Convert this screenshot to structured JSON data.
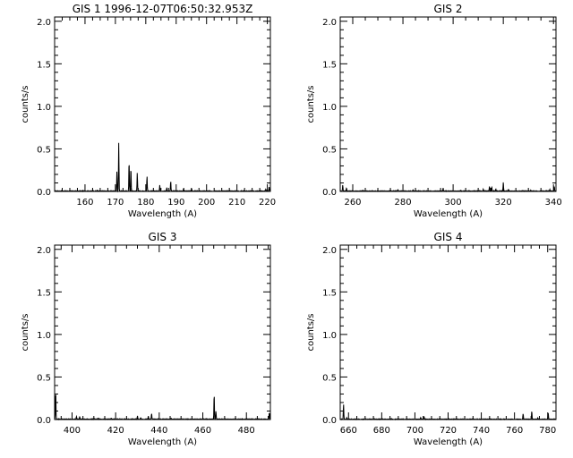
{
  "figure": {
    "background": "#ffffff",
    "line_color": "#000000"
  },
  "chart_data": [
    {
      "type": "line",
      "title": "GIS 1 1996-12-07T06:50:32.953Z",
      "xlabel": "Wavelength (A)",
      "ylabel": "counts/s",
      "xlim": [
        150,
        221
      ],
      "ylim": [
        0,
        2.05
      ],
      "xticks": [
        160,
        170,
        180,
        190,
        200,
        210,
        220
      ],
      "yticks": [
        "0.0",
        "0.5",
        "1.0",
        "1.5",
        "2.0"
      ],
      "grid": false,
      "baseline": 0.005,
      "peaks": [
        [
          164,
          0.01
        ],
        [
          170.5,
          0.23
        ],
        [
          171.1,
          0.57
        ],
        [
          174.5,
          0.36
        ],
        [
          175.1,
          0.28
        ],
        [
          177.2,
          0.22
        ],
        [
          180.4,
          0.18
        ],
        [
          184.6,
          0.07
        ],
        [
          186.9,
          0.04
        ],
        [
          188.2,
          0.12
        ],
        [
          192.4,
          0.03
        ],
        [
          195.1,
          0.02
        ],
        [
          203,
          0.008
        ],
        [
          217.5,
          0.01
        ],
        [
          219.5,
          0.02
        ],
        [
          220.6,
          0.05
        ]
      ]
    },
    {
      "type": "line",
      "title": "GIS 2",
      "xlabel": "Wavelength (A)",
      "ylabel": "counts/s",
      "xlim": [
        255,
        341
      ],
      "ylim": [
        0,
        2.05
      ],
      "xticks": [
        260,
        280,
        300,
        320,
        340
      ],
      "yticks": [
        "0.0",
        "0.5",
        "1.0",
        "1.5",
        "2.0"
      ],
      "grid": false,
      "baseline": 0.005,
      "peaks": [
        [
          256,
          0.07
        ],
        [
          257.5,
          0.04
        ],
        [
          264,
          0.01
        ],
        [
          275,
          0.012
        ],
        [
          278,
          0.02
        ],
        [
          284,
          0.012
        ],
        [
          296,
          0.035
        ],
        [
          303,
          0.01
        ],
        [
          312,
          0.02
        ],
        [
          314.5,
          0.06
        ],
        [
          315.4,
          0.05
        ],
        [
          317,
          0.02
        ],
        [
          320,
          0.1
        ],
        [
          322,
          0.02
        ],
        [
          331,
          0.01
        ],
        [
          338.5,
          0.02
        ],
        [
          340.3,
          0.06
        ]
      ]
    },
    {
      "type": "line",
      "title": "GIS 3",
      "xlabel": "Wavelength (A)",
      "ylabel": "counts/s",
      "xlim": [
        392,
        491
      ],
      "ylim": [
        0,
        2.05
      ],
      "xticks": [
        400,
        420,
        440,
        460,
        480
      ],
      "yticks": [
        "0.0",
        "0.5",
        "1.0",
        "1.5",
        "2.0"
      ],
      "grid": false,
      "baseline": 0.005,
      "peaks": [
        [
          392.5,
          0.34
        ],
        [
          402,
          0.03
        ],
        [
          403.5,
          0.035
        ],
        [
          412,
          0.01
        ],
        [
          418,
          0.01
        ],
        [
          430,
          0.04
        ],
        [
          431.5,
          0.02
        ],
        [
          435,
          0.03
        ],
        [
          436.5,
          0.07
        ],
        [
          445.5,
          0.01
        ],
        [
          465.2,
          0.3
        ],
        [
          466,
          0.1
        ],
        [
          475,
          0.01
        ],
        [
          490.5,
          0.08
        ]
      ]
    },
    {
      "type": "line",
      "title": "GIS 4",
      "xlabel": "Wavelength (A)",
      "ylabel": "counts/s",
      "xlim": [
        655,
        785
      ],
      "ylim": [
        0,
        2.05
      ],
      "xticks": [
        660,
        680,
        700,
        720,
        740,
        760,
        780
      ],
      "yticks": [
        "0.0",
        "0.5",
        "1.0",
        "1.5",
        "2.0"
      ],
      "grid": false,
      "baseline": 0.004,
      "peaks": [
        [
          657,
          0.18
        ],
        [
          659,
          0.02
        ],
        [
          675,
          0.008
        ],
        [
          686,
          0.01
        ],
        [
          703.5,
          0.02
        ],
        [
          705.5,
          0.03
        ],
        [
          720,
          0.008
        ],
        [
          735,
          0.01
        ],
        [
          745,
          0.008
        ],
        [
          765.2,
          0.07
        ],
        [
          770.4,
          0.1
        ],
        [
          774,
          0.01
        ],
        [
          780.3,
          0.08
        ]
      ]
    }
  ]
}
